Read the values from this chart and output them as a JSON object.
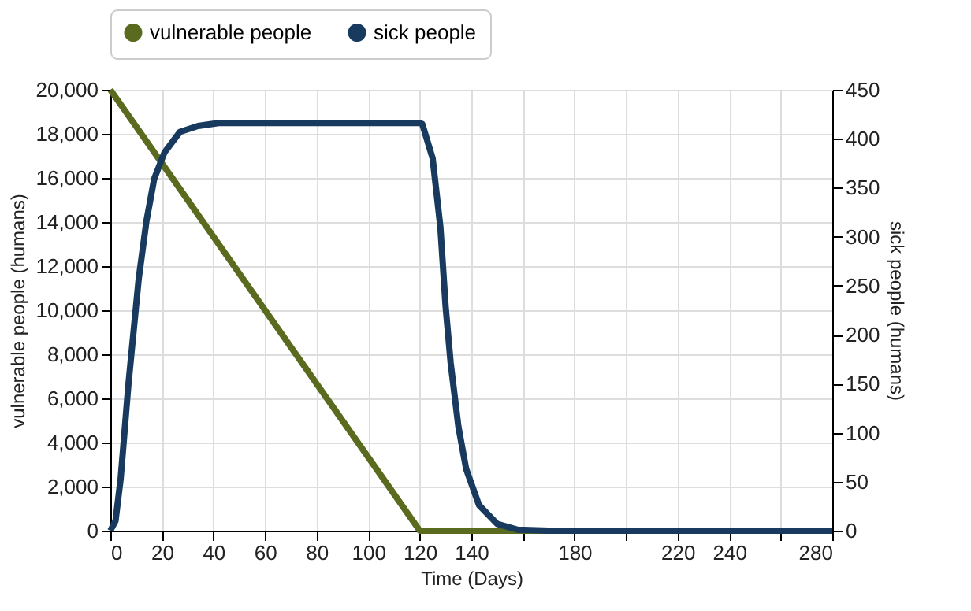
{
  "chart_data": {
    "type": "line",
    "xlabel": "Time (Days)",
    "ylabel": "vulnerable people (humans)",
    "y2label": "sick people (humans)",
    "xlim": [
      0,
      280
    ],
    "xticks": [
      0,
      20,
      40,
      60,
      80,
      100,
      120,
      140,
      {
        "value": 160,
        "label": null
      },
      180,
      {
        "value": 200,
        "label": null
      },
      220,
      240,
      {
        "value": 260,
        "label": null
      },
      280
    ],
    "ylim": [
      0,
      20000
    ],
    "yticks": [
      0,
      {
        "value": 2000,
        "label": "2,000"
      },
      {
        "value": 4000,
        "label": "4,000"
      },
      {
        "value": 6000,
        "label": "6,000"
      },
      {
        "value": 8000,
        "label": "8,000"
      },
      {
        "value": 10000,
        "label": "10,000"
      },
      {
        "value": 12000,
        "label": "12,000"
      },
      {
        "value": 14000,
        "label": "14,000"
      },
      {
        "value": 16000,
        "label": "16,000"
      },
      {
        "value": 18000,
        "label": "18,000"
      },
      {
        "value": 20000,
        "label": "20,000"
      }
    ],
    "y2lim": [
      0,
      450
    ],
    "y2ticks": [
      0,
      50,
      100,
      150,
      200,
      250,
      300,
      350,
      400,
      450
    ],
    "grid": true,
    "legend": "top",
    "marker": "none",
    "line_style": "solid",
    "series": [
      {
        "name": "vulnerable people",
        "color": "#5a6a1e",
        "x": [
          0,
          120,
          280
        ],
        "values": [
          20000,
          0,
          0
        ]
      },
      {
        "name": "sick people",
        "color": "#173a5e",
        "axis": "y2",
        "x": [
          0,
          2,
          4,
          7,
          11,
          14,
          17,
          21,
          27,
          34,
          42,
          120,
          121,
          125,
          128,
          130,
          132,
          135,
          138,
          143,
          150,
          158,
          170,
          280
        ],
        "values": [
          0,
          10,
          53,
          149,
          257,
          316,
          359,
          386,
          407,
          413,
          416,
          416,
          415,
          380,
          310,
          230,
          171,
          106,
          63,
          26,
          7,
          1,
          0,
          0
        ]
      }
    ]
  }
}
